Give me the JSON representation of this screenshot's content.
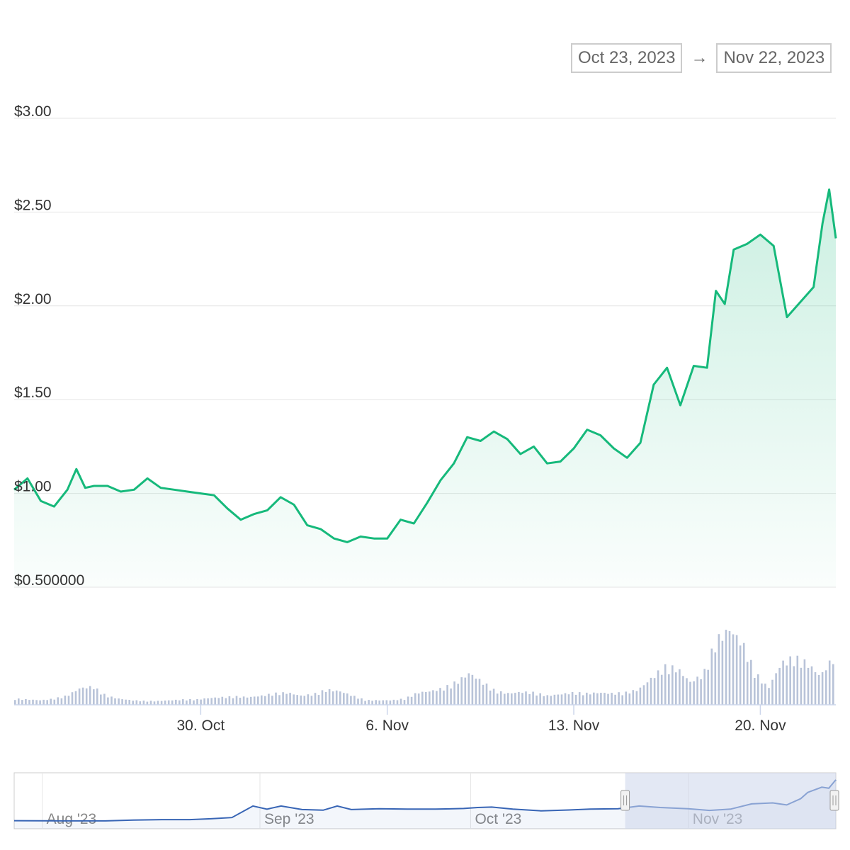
{
  "date_range": {
    "from": "Oct 23, 2023",
    "arrow": "→",
    "to": "Nov 22, 2023"
  },
  "colors": {
    "price_line": "#16b97b",
    "volume": "#b8c3d8",
    "navigator_line": "#3865b5",
    "navigator_mask": "#ccd6eb",
    "grid": "#e6e6e6"
  },
  "chart_data": {
    "type": "line",
    "title": "",
    "xlabel": "",
    "ylabel": "",
    "currency": "$",
    "ylim": [
      0.5,
      3.0
    ],
    "y_ticks": [
      "$0.500000",
      "$1.00",
      "$1.50",
      "$2.00",
      "$2.50",
      "$3.00"
    ],
    "y_tick_values": [
      0.5,
      1.0,
      1.5,
      2.0,
      2.5,
      3.0
    ],
    "xlim": [
      "2023-10-23",
      "2023-11-22"
    ],
    "x_ticks": [
      {
        "date": "2023-10-30",
        "label": "30. Oct"
      },
      {
        "date": "2023-11-06",
        "label": "6. Nov"
      },
      {
        "date": "2023-11-13",
        "label": "13. Nov"
      },
      {
        "date": "2023-11-20",
        "label": "20. Nov"
      }
    ],
    "series": [
      {
        "points": [
          [
            "2023-10-23",
            1.02
          ],
          [
            "2023-10-23T12",
            1.08
          ],
          [
            "2023-10-24",
            0.96
          ],
          [
            "2023-10-24T12",
            0.93
          ],
          [
            "2023-10-25",
            1.02
          ],
          [
            "2023-10-25T08",
            1.13
          ],
          [
            "2023-10-25T16",
            1.03
          ],
          [
            "2023-10-26",
            1.04
          ],
          [
            "2023-10-26T12",
            1.04
          ],
          [
            "2023-10-27",
            1.01
          ],
          [
            "2023-10-27T12",
            1.02
          ],
          [
            "2023-10-28",
            1.08
          ],
          [
            "2023-10-28T12",
            1.03
          ],
          [
            "2023-10-29",
            1.02
          ],
          [
            "2023-10-29T12",
            1.01
          ],
          [
            "2023-10-30",
            1.0
          ],
          [
            "2023-10-30T12",
            0.99
          ],
          [
            "2023-10-31",
            0.92
          ],
          [
            "2023-10-31T12",
            0.86
          ],
          [
            "2023-11-01",
            0.89
          ],
          [
            "2023-11-01T12",
            0.91
          ],
          [
            "2023-11-02",
            0.98
          ],
          [
            "2023-11-02T12",
            0.94
          ],
          [
            "2023-11-03",
            0.83
          ],
          [
            "2023-11-03T12",
            0.81
          ],
          [
            "2023-11-04",
            0.76
          ],
          [
            "2023-11-04T12",
            0.74
          ],
          [
            "2023-11-05",
            0.77
          ],
          [
            "2023-11-05T12",
            0.76
          ],
          [
            "2023-11-06",
            0.76
          ],
          [
            "2023-11-06T12",
            0.86
          ],
          [
            "2023-11-07",
            0.84
          ],
          [
            "2023-11-07T12",
            0.95
          ],
          [
            "2023-11-08",
            1.07
          ],
          [
            "2023-11-08T12",
            1.16
          ],
          [
            "2023-11-09",
            1.3
          ],
          [
            "2023-11-09T12",
            1.28
          ],
          [
            "2023-11-10",
            1.33
          ],
          [
            "2023-11-10T12",
            1.29
          ],
          [
            "2023-11-11",
            1.21
          ],
          [
            "2023-11-11T12",
            1.25
          ],
          [
            "2023-11-12",
            1.16
          ],
          [
            "2023-11-12T12",
            1.17
          ],
          [
            "2023-11-13",
            1.24
          ],
          [
            "2023-11-13T12",
            1.34
          ],
          [
            "2023-11-14",
            1.31
          ],
          [
            "2023-11-14T12",
            1.24
          ],
          [
            "2023-11-15",
            1.19
          ],
          [
            "2023-11-15T12",
            1.27
          ],
          [
            "2023-11-16",
            1.58
          ],
          [
            "2023-11-16T12",
            1.67
          ],
          [
            "2023-11-17",
            1.47
          ],
          [
            "2023-11-17T12",
            1.68
          ],
          [
            "2023-11-18",
            1.67
          ],
          [
            "2023-11-18T08",
            2.08
          ],
          [
            "2023-11-18T16",
            2.01
          ],
          [
            "2023-11-19",
            2.3
          ],
          [
            "2023-11-19T12",
            2.33
          ],
          [
            "2023-11-20",
            2.38
          ],
          [
            "2023-11-20T12",
            2.32
          ],
          [
            "2023-11-21",
            1.94
          ],
          [
            "2023-11-21T12",
            2.02
          ],
          [
            "2023-11-22",
            2.1
          ],
          [
            "2023-11-22T08",
            2.44
          ],
          [
            "2023-11-22T14",
            2.62
          ],
          [
            "2023-11-22T20",
            2.36
          ]
        ]
      }
    ],
    "volume": {
      "points": [
        [
          0,
          0.08
        ],
        [
          1,
          0.07
        ],
        [
          2,
          0.06
        ],
        [
          3,
          0.08
        ],
        [
          4,
          0.12
        ],
        [
          5,
          0.22
        ],
        [
          6,
          0.24
        ],
        [
          7,
          0.12
        ],
        [
          8,
          0.08
        ],
        [
          9,
          0.06
        ],
        [
          10,
          0.05
        ],
        [
          11,
          0.05
        ],
        [
          12,
          0.06
        ],
        [
          13,
          0.07
        ],
        [
          14,
          0.07
        ],
        [
          15,
          0.09
        ],
        [
          16,
          0.1
        ],
        [
          17,
          0.11
        ],
        [
          18,
          0.1
        ],
        [
          19,
          0.12
        ],
        [
          20,
          0.15
        ],
        [
          21,
          0.16
        ],
        [
          22,
          0.12
        ],
        [
          23,
          0.14
        ],
        [
          24,
          0.2
        ],
        [
          25,
          0.18
        ],
        [
          26,
          0.12
        ],
        [
          27,
          0.06
        ],
        [
          28,
          0.06
        ],
        [
          29,
          0.06
        ],
        [
          30,
          0.08
        ],
        [
          31,
          0.16
        ],
        [
          32,
          0.18
        ],
        [
          33,
          0.22
        ],
        [
          34,
          0.3
        ],
        [
          35,
          0.42
        ],
        [
          36,
          0.3
        ],
        [
          37,
          0.18
        ],
        [
          38,
          0.15
        ],
        [
          39,
          0.17
        ],
        [
          40,
          0.16
        ],
        [
          41,
          0.12
        ],
        [
          42,
          0.14
        ],
        [
          43,
          0.16
        ],
        [
          44,
          0.15
        ],
        [
          45,
          0.16
        ],
        [
          46,
          0.15
        ],
        [
          47,
          0.16
        ],
        [
          48,
          0.2
        ],
        [
          49,
          0.35
        ],
        [
          50,
          0.5
        ],
        [
          51,
          0.48
        ],
        [
          52,
          0.3
        ],
        [
          53,
          0.4
        ],
        [
          54,
          0.85
        ],
        [
          55,
          1.0
        ],
        [
          56,
          0.82
        ],
        [
          57,
          0.42
        ],
        [
          58,
          0.22
        ],
        [
          59,
          0.55
        ],
        [
          60,
          0.62
        ],
        [
          61,
          0.55
        ],
        [
          62,
          0.38
        ],
        [
          63,
          0.62
        ]
      ],
      "max_relative": 1.0
    }
  },
  "navigator": {
    "labels": [
      {
        "date": "2023-08-01",
        "label": "Aug '23"
      },
      {
        "date": "2023-09-01",
        "label": "Sep '23"
      },
      {
        "date": "2023-10-01",
        "label": "Oct '23"
      },
      {
        "date": "2023-11-01",
        "label": "Nov '23"
      }
    ],
    "range": [
      "2023-07-28",
      "2023-11-22"
    ],
    "selected": [
      "2023-10-23",
      "2023-11-22"
    ],
    "series": [
      [
        "2023-07-28",
        0.25
      ],
      [
        "2023-08-04",
        0.24
      ],
      [
        "2023-08-10",
        0.24
      ],
      [
        "2023-08-14",
        0.28
      ],
      [
        "2023-08-18",
        0.3
      ],
      [
        "2023-08-22",
        0.3
      ],
      [
        "2023-08-25",
        0.34
      ],
      [
        "2023-08-28",
        0.4
      ],
      [
        "2023-08-31",
        0.95
      ],
      [
        "2023-09-02",
        0.8
      ],
      [
        "2023-09-04",
        0.95
      ],
      [
        "2023-09-07",
        0.78
      ],
      [
        "2023-09-10",
        0.75
      ],
      [
        "2023-09-12",
        0.95
      ],
      [
        "2023-09-14",
        0.78
      ],
      [
        "2023-09-18",
        0.82
      ],
      [
        "2023-09-22",
        0.8
      ],
      [
        "2023-09-26",
        0.8
      ],
      [
        "2023-09-30",
        0.83
      ],
      [
        "2023-10-02",
        0.88
      ],
      [
        "2023-10-04",
        0.9
      ],
      [
        "2023-10-07",
        0.8
      ],
      [
        "2023-10-11",
        0.72
      ],
      [
        "2023-10-15",
        0.76
      ],
      [
        "2023-10-18",
        0.8
      ],
      [
        "2023-10-22",
        0.82
      ],
      [
        "2023-10-25",
        0.95
      ],
      [
        "2023-10-28",
        0.88
      ],
      [
        "2023-11-01",
        0.82
      ],
      [
        "2023-11-04",
        0.74
      ],
      [
        "2023-11-07",
        0.8
      ],
      [
        "2023-11-10",
        1.05
      ],
      [
        "2023-11-13",
        1.1
      ],
      [
        "2023-11-15",
        1.0
      ],
      [
        "2023-11-17",
        1.3
      ],
      [
        "2023-11-18",
        1.6
      ],
      [
        "2023-11-20",
        1.85
      ],
      [
        "2023-11-21",
        1.8
      ],
      [
        "2023-11-22",
        2.2
      ]
    ]
  }
}
